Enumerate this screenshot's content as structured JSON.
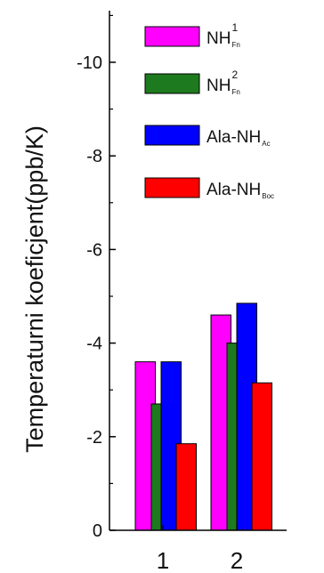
{
  "chart_data": {
    "type": "bar",
    "ylabel": "Temperaturni koeficjent(ppb/K)",
    "xlabel": "",
    "title": "",
    "categories": [
      "1",
      "2"
    ],
    "yticks": [
      "0",
      "-2",
      "-4",
      "-6",
      "-8",
      "-10"
    ],
    "ylim": [
      0,
      -11
    ],
    "y_axis_inverted": true,
    "grid": false,
    "legend_position": "top-right",
    "series": [
      {
        "name": "NH",
        "name_sup": "1",
        "name_sub": "Fn",
        "color": "#ff00ff",
        "values": [
          -3.6,
          -4.6
        ]
      },
      {
        "name": "NH",
        "name_sup": "2",
        "name_sub": "Fn",
        "color": "#1e7a1e",
        "values": [
          -2.7,
          -4.0
        ]
      },
      {
        "name": "Ala-NH",
        "name_sup": "",
        "name_sub": "Ac",
        "color": "#0000ff",
        "values": [
          -3.6,
          -4.85
        ]
      },
      {
        "name": "Ala-NH",
        "name_sup": "",
        "name_sub": "Boc",
        "color": "#ff0000",
        "values": [
          -1.85,
          -3.15
        ]
      }
    ]
  }
}
